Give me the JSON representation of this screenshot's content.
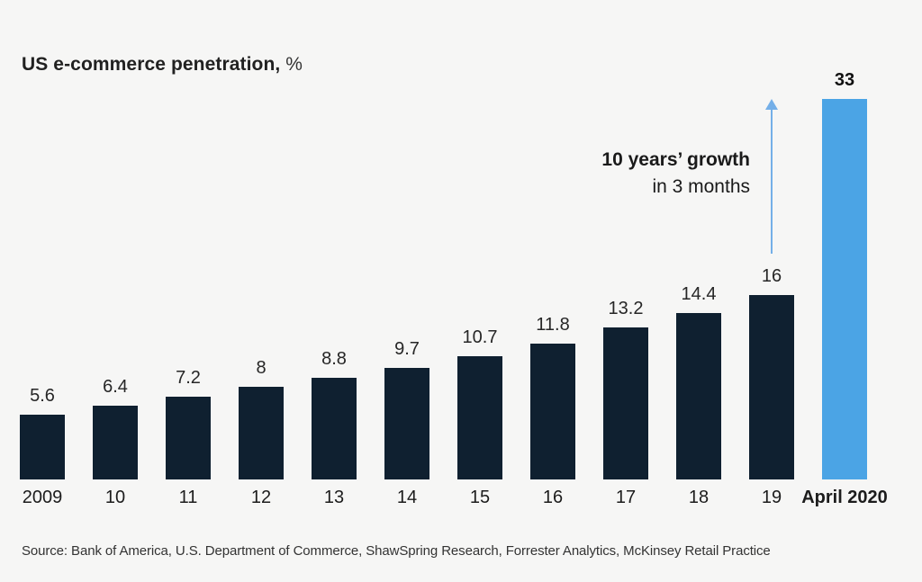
{
  "title": {
    "bold": "US e-commerce penetration,",
    "suffix": " %"
  },
  "annotation": {
    "line1": "10 years’ growth",
    "line2": "in 3 months"
  },
  "source": "Source: Bank of America, U.S. Department of Commerce, ShawSpring Research, Forrester Analytics, McKinsey Retail Practice",
  "colors": {
    "bar_dark": "#0f2030",
    "bar_highlight": "#4ba4e5",
    "arrow": "#74afe8",
    "background": "#f6f6f5"
  },
  "chart_data": {
    "type": "bar",
    "title": "US e-commerce penetration, %",
    "categories": [
      "2009",
      "10",
      "11",
      "12",
      "13",
      "14",
      "15",
      "16",
      "17",
      "18",
      "19",
      "April 2020"
    ],
    "values": [
      5.6,
      6.4,
      7.2,
      8,
      8.8,
      9.7,
      10.7,
      11.8,
      13.2,
      14.4,
      16,
      33
    ],
    "highlight_index": 11,
    "highlight_label": "April 2020",
    "xlabel": "",
    "ylabel": "",
    "ylim": [
      0,
      33
    ],
    "grid": false,
    "legend": "none",
    "value_labels": true,
    "annotation": "10 years’ growth in 3 months"
  }
}
